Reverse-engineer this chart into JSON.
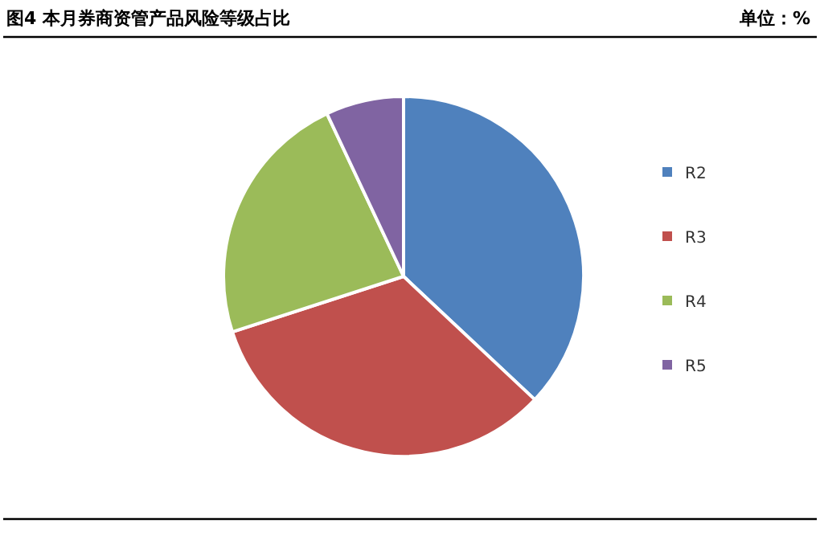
{
  "chart_data": {
    "type": "pie",
    "title": "图4   本月券商资管产品风险等级占比",
    "annotations": [
      "单位：%"
    ],
    "categories": [
      "R2",
      "R3",
      "R4",
      "R5"
    ],
    "values": [
      37,
      33,
      23,
      7
    ],
    "colors": [
      "#4f81bd",
      "#c0504d",
      "#9bbb59",
      "#8064a2"
    ],
    "legend": "right"
  }
}
